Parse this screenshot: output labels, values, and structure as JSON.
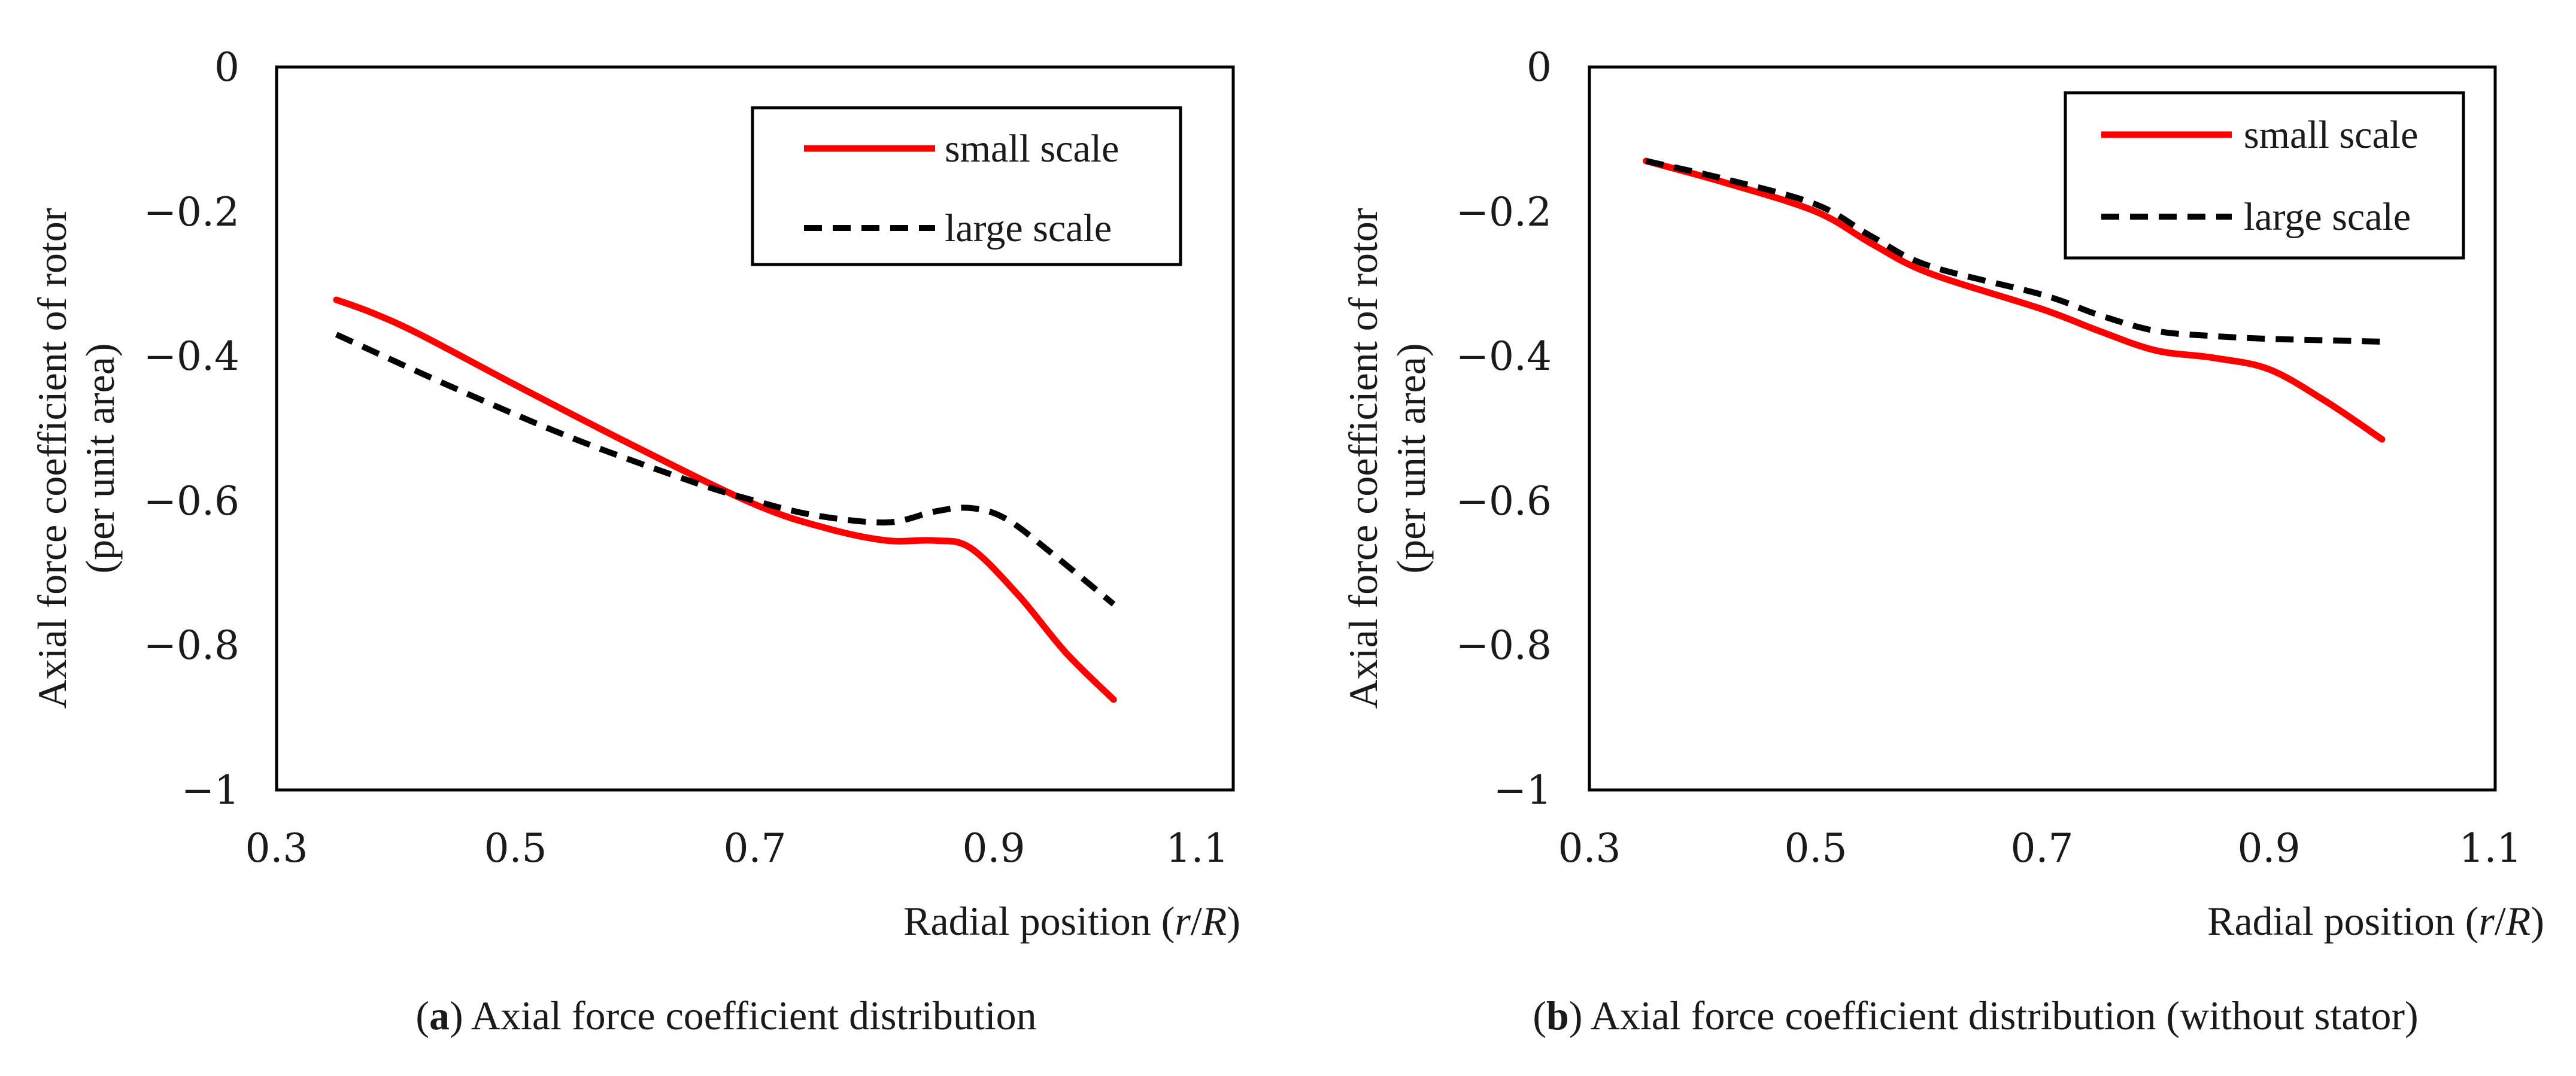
{
  "chart_data": [
    {
      "id": "a",
      "type": "line",
      "title": "",
      "caption": {
        "paren_open": "(",
        "letter": "a",
        "paren_close": ")",
        "text": " Axial force coefficient distribution"
      },
      "xlabel": {
        "text": "Radial position (",
        "var1": "r",
        "slash": "/",
        "var2": "R",
        "close": ")"
      },
      "ylabel": {
        "line1": "Axial force coefficient of rotor",
        "line2": "(per unit area)"
      },
      "xlim": [
        0.3,
        1.1
      ],
      "ylim": [
        -1,
        0
      ],
      "xticks": [
        0.3,
        0.5,
        0.7,
        0.9,
        1.1
      ],
      "xtick_labels": [
        "0.3",
        "0.5",
        "0.7",
        "0.9",
        "1.1"
      ],
      "yticks": [
        0,
        -0.2,
        -0.4,
        -0.6,
        -0.8,
        -1
      ],
      "ytick_labels": [
        "0",
        "−0.2",
        "−0.4",
        "−0.6",
        "−0.8",
        "−1"
      ],
      "legend_position": "top-right",
      "series": [
        {
          "name": "small scale",
          "color": "#ff0000",
          "style": "solid",
          "x": [
            0.35,
            0.38,
            0.42,
            0.5,
            0.6,
            0.7,
            0.76,
            0.81,
            0.85,
            0.88,
            0.92,
            0.96,
            1.0
          ],
          "y": [
            -0.322,
            -0.34,
            -0.37,
            -0.44,
            -0.525,
            -0.605,
            -0.638,
            -0.655,
            -0.655,
            -0.665,
            -0.73,
            -0.81,
            -0.875
          ]
        },
        {
          "name": "large scale",
          "color": "#000000",
          "style": "dashed",
          "x": [
            0.35,
            0.45,
            0.55,
            0.65,
            0.7,
            0.75,
            0.81,
            0.85,
            0.88,
            0.91,
            0.95,
            1.0
          ],
          "y": [
            -0.37,
            -0.445,
            -0.515,
            -0.575,
            -0.6,
            -0.62,
            -0.63,
            -0.615,
            -0.61,
            -0.625,
            -0.675,
            -0.743
          ]
        }
      ]
    },
    {
      "id": "b",
      "type": "line",
      "title": "",
      "caption": {
        "paren_open": "(",
        "letter": "b",
        "paren_close": ")",
        "text": " Axial force coefficient distribution (without stator)"
      },
      "xlabel": {
        "text": "Radial position (",
        "var1": "r",
        "slash": "/",
        "var2": "R",
        "close": ")"
      },
      "ylabel": {
        "line1": "Axial force coefficient of rotor",
        "line2": "(per unit area)"
      },
      "xlim": [
        0.3,
        1.1
      ],
      "ylim": [
        -1,
        0
      ],
      "xticks": [
        0.3,
        0.5,
        0.7,
        0.9,
        1.1
      ],
      "xtick_labels": [
        "0.3",
        "0.5",
        "0.7",
        "0.9",
        "1.1"
      ],
      "yticks": [
        0,
        -0.2,
        -0.4,
        -0.6,
        -0.8,
        -1
      ],
      "ytick_labels": [
        "0",
        "−0.2",
        "−0.4",
        "−0.6",
        "−0.8",
        "−1"
      ],
      "legend_position": "top-right",
      "series": [
        {
          "name": "small scale",
          "color": "#ff0000",
          "style": "solid",
          "x": [
            0.35,
            0.42,
            0.5,
            0.55,
            0.6,
            0.7,
            0.75,
            0.8,
            0.85,
            0.9,
            0.95,
            1.0
          ],
          "y": [
            -0.13,
            -0.16,
            -0.2,
            -0.245,
            -0.285,
            -0.335,
            -0.365,
            -0.392,
            -0.402,
            -0.418,
            -0.462,
            -0.515
          ]
        },
        {
          "name": "large scale",
          "color": "#000000",
          "style": "dashed",
          "x": [
            0.35,
            0.42,
            0.5,
            0.55,
            0.6,
            0.7,
            0.75,
            0.8,
            0.85,
            0.9,
            0.95,
            1.0
          ],
          "y": [
            -0.13,
            -0.155,
            -0.19,
            -0.235,
            -0.275,
            -0.315,
            -0.343,
            -0.365,
            -0.372,
            -0.376,
            -0.378,
            -0.38
          ]
        }
      ]
    }
  ]
}
